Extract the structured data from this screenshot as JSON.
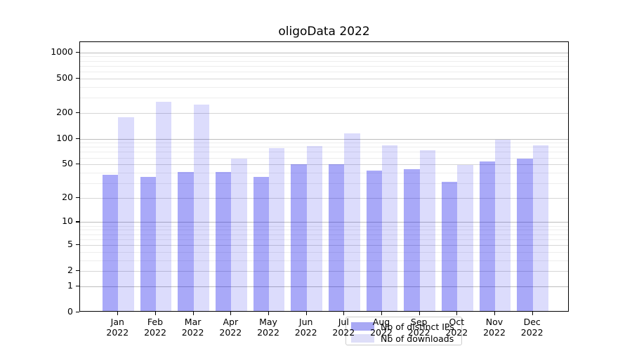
{
  "title": "oligoData 2022",
  "legend": {
    "items": [
      {
        "label": "Nb of distinct IPs",
        "swatch_color": "#a9a9f4"
      },
      {
        "label": "Nb of downloads",
        "swatch_color": "#dedef8"
      }
    ]
  },
  "colors": {
    "ips_bar": "rgba(10,10,235,0.35)",
    "downloads_bar": "rgba(10,10,235,0.14)",
    "grid_major": "#bdbdbd",
    "grid_mid": "#d6d6d6",
    "grid_minor": "#ededed"
  },
  "chart_data": {
    "type": "bar",
    "title": "oligoData 2022",
    "categories": [
      "Jan 2022",
      "Feb 2022",
      "Mar 2022",
      "Apr 2022",
      "May 2022",
      "Jun 2022",
      "Jul 2022",
      "Aug 2022",
      "Sep 2022",
      "Oct 2022",
      "Nov 2022",
      "Dec 2022"
    ],
    "series": [
      {
        "name": "Nb of distinct IPs",
        "values": [
          36,
          34,
          39,
          39,
          34,
          48,
          48,
          41,
          42,
          30,
          52,
          56
        ]
      },
      {
        "name": "Nb of downloads",
        "values": [
          170,
          258,
          240,
          56,
          75,
          79,
          111,
          81,
          71,
          47,
          93,
          80
        ]
      }
    ],
    "xlabel": "",
    "ylabel": "",
    "yscale": "log1p",
    "yticks": [
      0,
      1,
      2,
      5,
      10,
      20,
      50,
      100,
      200,
      500,
      1000
    ],
    "ylim": [
      0,
      1312
    ],
    "grid": "both",
    "legend_position": "lower center"
  }
}
